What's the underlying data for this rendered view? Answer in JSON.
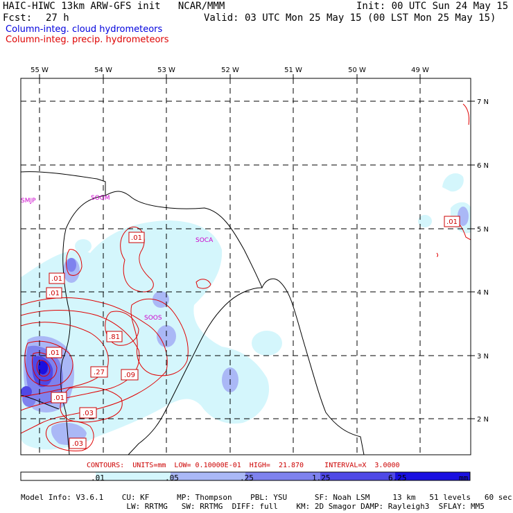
{
  "header": {
    "title": "HAIC-HIWC 13km ARW-GFS init   NCAR/MMM",
    "fcst_label": "Fcst:",
    "fcst_value": "27 h",
    "init": "Init: 00 UTC Sun 24 May 15",
    "valid": "Valid: 03 UTC Mon 25 May 15 (00 LST Mon 25 May 15)",
    "field_cloud": "Column-integ. cloud hydrometeors",
    "field_precip": "Column-integ. precip. hydrometeors"
  },
  "map": {
    "lon_labels": [
      "55 W",
      "54 W",
      "53 W",
      "52 W",
      "51 W",
      "50 W",
      "49 W"
    ],
    "lat_labels": [
      "7 N",
      "6 N",
      "5 N",
      "4 N",
      "3 N",
      "2 N"
    ],
    "stations": [
      "SMJP",
      "SOGM",
      "SOCA",
      "SOOS"
    ],
    "contour_labels": [
      ".01",
      ".01",
      ".01",
      ".81",
      ".01",
      ".27",
      ".09",
      ".01",
      ".03",
      ".03",
      ".01"
    ]
  },
  "contour_info": "CONTOURS:  UNITS=mm  LOW= 0.10000E-01  HIGH=  21.870     INTERVAL=X  3.0000",
  "colorbar": {
    "ticks": [
      ".01",
      ".05",
      ".25",
      "1.25",
      "6.25"
    ],
    "units": "mm",
    "colors": [
      "#ffffff",
      "#d4f6fc",
      "#aab8f6",
      "#7e82ee",
      "#4f49e6",
      "#1a10e0"
    ]
  },
  "model_info": {
    "line1": "Model Info: V3.6.1    CU: KF      MP: Thompson    PBL: YSU      SF: Noah LSM     13 km   51 levels   60 sec",
    "line2": "                       LW: RRTMG   SW: RRTMG  DIFF: full    KM: 2D Smagor DAMP: Rayleigh3  SFLAY: MM5"
  }
}
